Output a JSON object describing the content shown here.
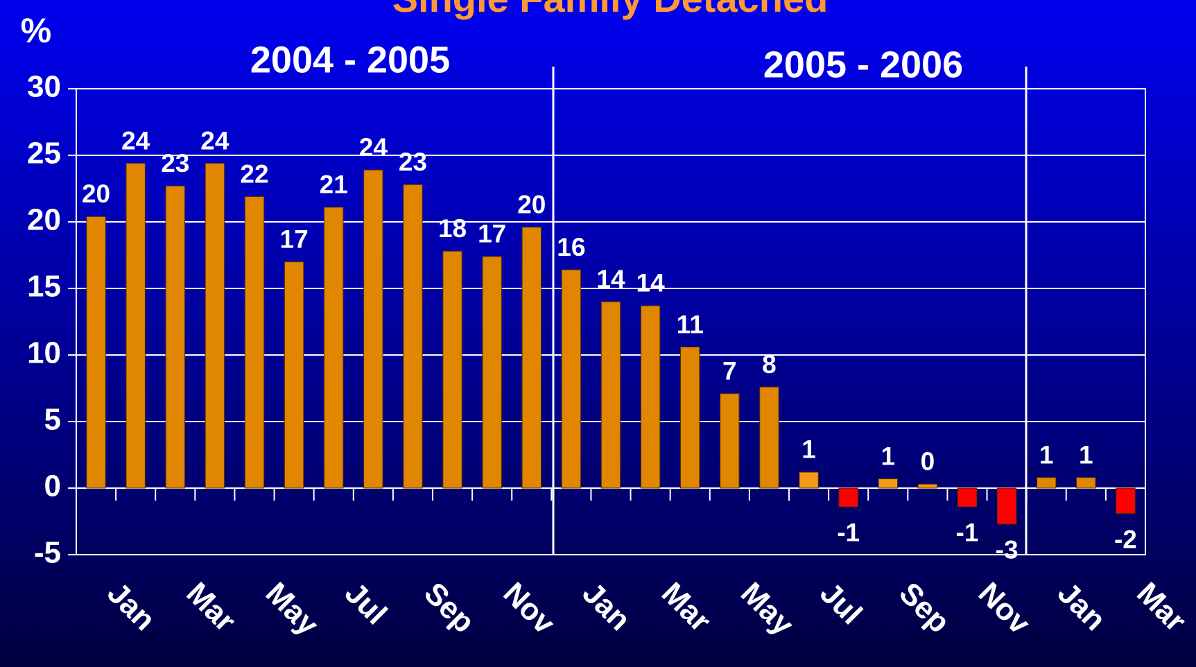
{
  "chart_data": {
    "type": "bar",
    "title": "Single Family Detached",
    "y_label": "%",
    "annotations": [
      "2004 - 2005",
      "2005 - 2006"
    ],
    "categories": [
      "Jan",
      null,
      "Mar",
      null,
      "May",
      null,
      "Jul",
      null,
      "Sep",
      null,
      "Nov",
      null,
      "Jan",
      null,
      "Mar",
      null,
      "May",
      null,
      "Jul",
      null,
      "Sep",
      null,
      "Nov",
      null,
      "Jan",
      null,
      "Mar"
    ],
    "values": [
      20.4,
      24.4,
      22.7,
      24.4,
      21.9,
      17.0,
      21.1,
      23.9,
      22.8,
      17.8,
      17.4,
      19.6,
      16.4,
      14.0,
      13.7,
      10.6,
      7.1,
      7.6,
      1.2,
      -1.4,
      0.7,
      0.3,
      -1.4,
      -2.7,
      0.8,
      0.8,
      -1.9
    ],
    "value_labels": [
      "20",
      "24",
      "23",
      "24",
      "22",
      "17",
      "21",
      "24",
      "23",
      "18",
      "17",
      "20",
      "16",
      "14",
      "14",
      "11",
      "7",
      "8",
      "1",
      "-1",
      "1",
      "0",
      "-1",
      "-3",
      "1",
      "1",
      "-2"
    ],
    "colors": [
      "#e08600",
      "#e08600",
      "#e08600",
      "#e08600",
      "#e08600",
      "#e08600",
      "#e08600",
      "#e08600",
      "#e08600",
      "#e08600",
      "#e08600",
      "#e08600",
      "#e08600",
      "#e08600",
      "#e08600",
      "#e08600",
      "#e08600",
      "#e08600",
      "#f39a1a",
      "#ff0000",
      "#f39a1a",
      "#f39a1a",
      "#ff0000",
      "#ff0000",
      "#e08600",
      "#e08600",
      "#ff0000"
    ],
    "ylim": [
      -5,
      30
    ],
    "yticks": [
      -5,
      0,
      5,
      10,
      15,
      20,
      25,
      30
    ],
    "grid": true
  }
}
